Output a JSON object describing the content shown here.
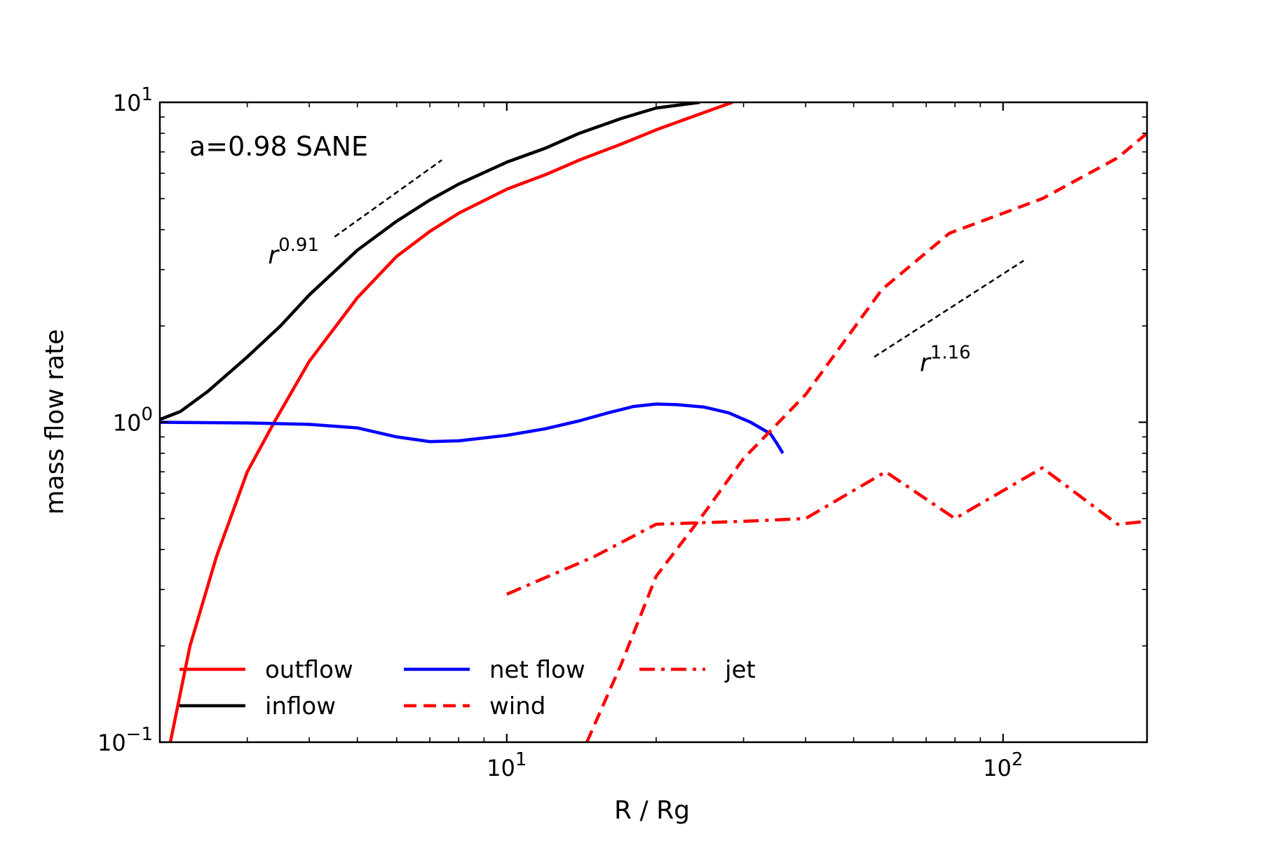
{
  "chart_data": {
    "type": "line",
    "title": "",
    "annotation": "a=0.98 SANE",
    "xlabel": "R / Rg",
    "ylabel": "mass flow rate",
    "xscale": "log",
    "yscale": "log",
    "xlim": [
      2.0,
      195.0
    ],
    "ylim": [
      0.1,
      10.0
    ],
    "x_ticks": [
      {
        "value": 10,
        "base": "10",
        "exp": "1"
      },
      {
        "value": 100,
        "base": "10",
        "exp": "2"
      }
    ],
    "y_ticks": [
      {
        "value": 0.1,
        "base": "10",
        "exp": "−1"
      },
      {
        "value": 1,
        "base": "10",
        "exp": "0"
      },
      {
        "value": 10,
        "base": "10",
        "exp": "1"
      }
    ],
    "series": [
      {
        "name": "outflow",
        "color": "#ff0000",
        "style": "solid",
        "x": [
          2.1,
          2.3,
          2.6,
          3.0,
          3.4,
          4.0,
          5.0,
          6.0,
          7.0,
          8.0,
          10.0,
          12.0,
          14.0,
          17.0,
          20.0,
          25.0,
          28.5
        ],
        "y": [
          0.1,
          0.2,
          0.38,
          0.7,
          1.0,
          1.55,
          2.45,
          3.3,
          3.95,
          4.5,
          5.35,
          5.95,
          6.6,
          7.4,
          8.2,
          9.3,
          10.0
        ]
      },
      {
        "name": "inflow",
        "color": "#000000",
        "style": "solid",
        "x": [
          2.0,
          2.2,
          2.5,
          3.0,
          3.5,
          4.0,
          5.0,
          6.0,
          7.0,
          8.0,
          10.0,
          12.0,
          14.0,
          17.0,
          20.0,
          24.5
        ],
        "y": [
          1.02,
          1.08,
          1.25,
          1.6,
          2.0,
          2.5,
          3.45,
          4.25,
          4.95,
          5.55,
          6.5,
          7.2,
          8.0,
          8.9,
          9.6,
          10.0
        ]
      },
      {
        "name": "net flow",
        "color": "#0000ff",
        "style": "solid",
        "x": [
          2.0,
          3.0,
          4.0,
          5.0,
          6.0,
          7.0,
          8.0,
          10.0,
          12.0,
          14.0,
          16.0,
          18.0,
          20.0,
          22.0,
          25.0,
          28.0,
          31.0,
          34.0,
          35.0,
          36.0
        ],
        "y": [
          1.0,
          0.995,
          0.985,
          0.96,
          0.9,
          0.87,
          0.875,
          0.91,
          0.955,
          1.01,
          1.07,
          1.12,
          1.14,
          1.135,
          1.115,
          1.07,
          1.0,
          0.92,
          0.86,
          0.8
        ]
      },
      {
        "name": "wind",
        "color": "#ff0000",
        "style": "dashed",
        "x": [
          14.5,
          17.0,
          20.0,
          25.0,
          30.0,
          40.0,
          57.0,
          78.0,
          120.0,
          170.0,
          195.0
        ],
        "y": [
          0.1,
          0.175,
          0.33,
          0.52,
          0.77,
          1.22,
          2.6,
          3.9,
          5.0,
          6.7,
          8.0
        ]
      },
      {
        "name": "jet",
        "color": "#ff0000",
        "style": "dashdot",
        "x": [
          10.0,
          15.0,
          20.0,
          30.0,
          40.0,
          58.0,
          80.0,
          120.0,
          170.0,
          195.0
        ],
        "y": [
          0.29,
          0.38,
          0.48,
          0.49,
          0.5,
          0.7,
          0.5,
          0.72,
          0.48,
          0.49
        ]
      }
    ],
    "reference_lines": [
      {
        "label": "r",
        "exp": "0.91",
        "x": [
          4.5,
          7.4
        ],
        "y": [
          3.8,
          6.6
        ],
        "color": "#000000",
        "style": "dashed"
      },
      {
        "label": "r",
        "exp": "1.16",
        "x": [
          55.0,
          110.0
        ],
        "y": [
          1.6,
          3.2
        ],
        "color": "#000000",
        "style": "dashed"
      }
    ],
    "legend": {
      "placement": "lower-left",
      "entries": [
        "outflow",
        "inflow",
        "net flow",
        "wind",
        "jet"
      ]
    }
  }
}
